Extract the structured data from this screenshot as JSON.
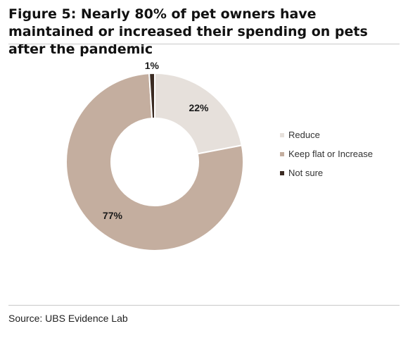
{
  "title": "Figure 5: Nearly 80% of pet owners have maintained or increased their spending on pets after the pandemic",
  "source": "Source: UBS Evidence Lab",
  "chart_data": {
    "type": "pie",
    "donut": true,
    "legend_placement": "right",
    "slices": [
      {
        "label": "Reduce",
        "value": 22,
        "display": "22%",
        "color": "#e6e0db"
      },
      {
        "label": "Keep flat or Increase",
        "value": 77,
        "display": "77%",
        "color": "#c4ae9f"
      },
      {
        "label": "Not sure",
        "value": 1,
        "display": "1%",
        "color": "#3b2b22"
      }
    ]
  }
}
